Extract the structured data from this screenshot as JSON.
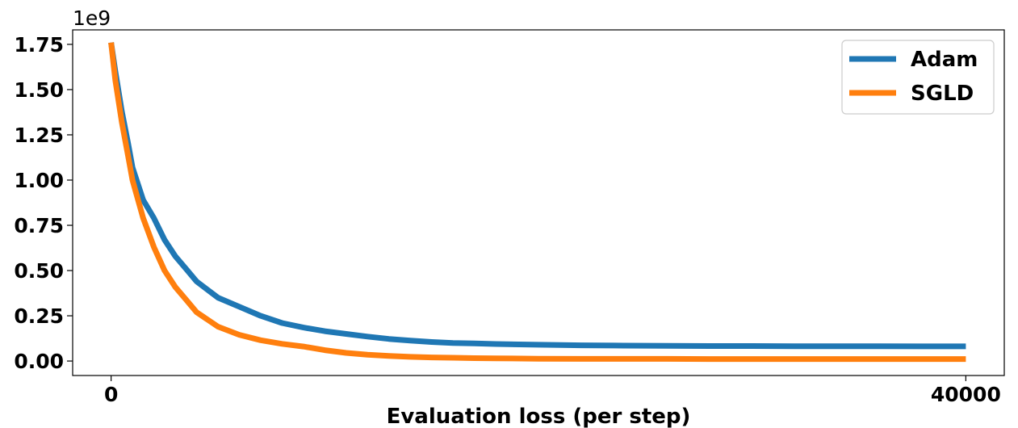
{
  "chart_data": {
    "type": "line",
    "title": "",
    "xlabel": "Evaluation loss (per step)",
    "ylabel": "",
    "y_offset_text": "1e9",
    "xlim": [
      -1800,
      41800
    ],
    "ylim": [
      -0.08,
      1.83
    ],
    "x_ticks": [
      0,
      40000
    ],
    "x_tick_labels": [
      "0",
      "40000"
    ],
    "y_ticks": [
      0.0,
      0.25,
      0.5,
      0.75,
      1.0,
      1.25,
      1.5,
      1.75
    ],
    "y_tick_labels": [
      "0.00",
      "0.25",
      "0.50",
      "0.75",
      "1.00",
      "1.25",
      "1.50",
      "1.75"
    ],
    "grid": false,
    "legend_position": "top-right",
    "series": [
      {
        "name": "Adam",
        "color": "#1f77b4",
        "x": [
          0,
          200,
          500,
          800,
          1000,
          1500,
          2000,
          2500,
          3000,
          3500,
          4000,
          5000,
          6000,
          7000,
          8000,
          9000,
          10000,
          11000,
          12000,
          13000,
          14000,
          15000,
          16000,
          17000,
          18000,
          20000,
          22000,
          24000,
          26000,
          28000,
          30000,
          32000,
          34000,
          36000,
          38000,
          40000
        ],
        "values": [
          1.76,
          1.6,
          1.38,
          1.2,
          1.07,
          0.89,
          0.79,
          0.67,
          0.58,
          0.51,
          0.44,
          0.35,
          0.3,
          0.25,
          0.21,
          0.185,
          0.165,
          0.15,
          0.135,
          0.122,
          0.113,
          0.105,
          0.1,
          0.097,
          0.094,
          0.09,
          0.087,
          0.085,
          0.084,
          0.083,
          0.083,
          0.082,
          0.082,
          0.082,
          0.081,
          0.081
        ]
      },
      {
        "name": "SGLD",
        "color": "#ff7f0e",
        "x": [
          0,
          200,
          500,
          800,
          1000,
          1500,
          2000,
          2500,
          3000,
          3500,
          4000,
          5000,
          6000,
          7000,
          8000,
          9000,
          10000,
          11000,
          12000,
          13000,
          14000,
          15000,
          16000,
          17000,
          18000,
          20000,
          22000,
          24000,
          26000,
          28000,
          30000,
          32000,
          34000,
          36000,
          38000,
          40000
        ],
        "values": [
          1.76,
          1.55,
          1.32,
          1.13,
          1.0,
          0.79,
          0.63,
          0.5,
          0.41,
          0.34,
          0.27,
          0.19,
          0.145,
          0.115,
          0.095,
          0.08,
          0.06,
          0.045,
          0.035,
          0.028,
          0.023,
          0.02,
          0.018,
          0.016,
          0.015,
          0.013,
          0.012,
          0.012,
          0.012,
          0.011,
          0.011,
          0.011,
          0.011,
          0.011,
          0.011,
          0.011
        ]
      }
    ]
  }
}
